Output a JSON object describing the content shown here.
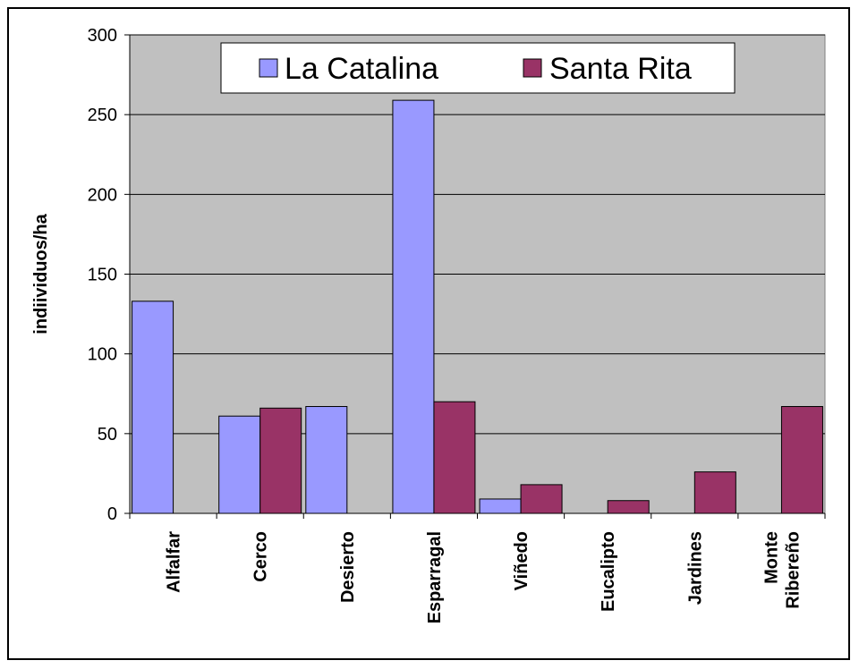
{
  "chart_data": {
    "type": "bar",
    "ylabel": "indiividuos/ha",
    "xlabel": "",
    "ylim": [
      0,
      300
    ],
    "yticks": [
      0,
      50,
      100,
      150,
      200,
      250,
      300
    ],
    "grid": true,
    "legend_position": "top-center",
    "plot_background": "#c0c0c0",
    "category_lines": [
      [
        "Alfalfar"
      ],
      [
        "Cerco"
      ],
      [
        "Desierto"
      ],
      [
        "Esparragal"
      ],
      [
        "Viñedo"
      ],
      [
        "Eucalipto"
      ],
      [
        "Jardines"
      ],
      [
        "Monte",
        "Ribereño"
      ]
    ],
    "categories": [
      "Alfalfar",
      "Cerco",
      "Desierto",
      "Esparragal",
      "Viñedo",
      "Eucalipto",
      "Jardines",
      "Monte Ribereño"
    ],
    "series": [
      {
        "name": "La Catalina",
        "color": "#9999ff",
        "values": [
          133,
          61,
          67,
          259,
          9,
          0,
          0,
          0
        ]
      },
      {
        "name": "Santa Rita",
        "color": "#993366",
        "values": [
          0,
          66,
          0,
          70,
          18,
          8,
          26,
          67
        ]
      }
    ]
  }
}
